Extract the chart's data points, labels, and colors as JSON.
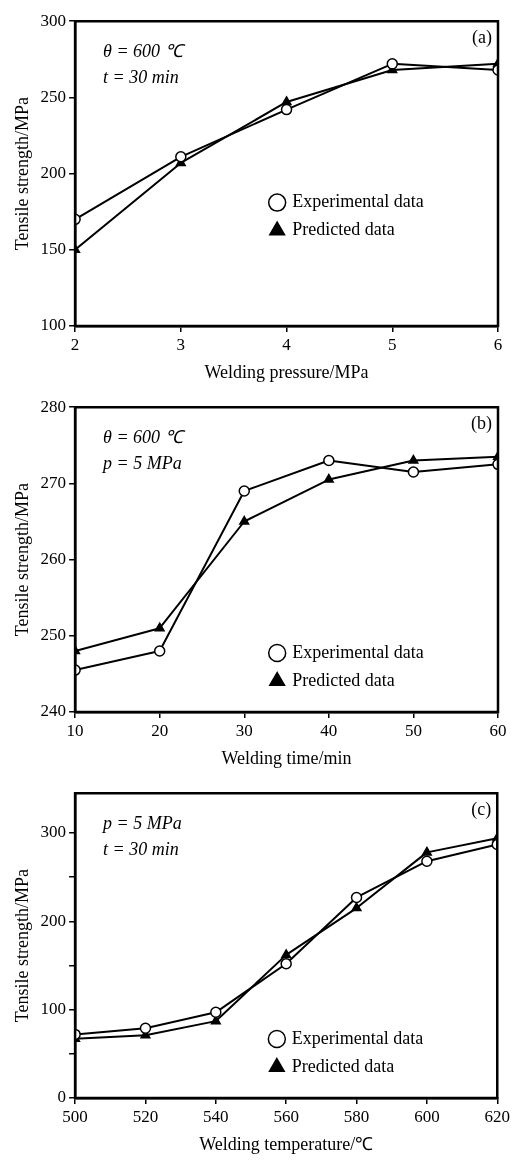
{
  "chart_data": [
    {
      "type": "line",
      "xlabel": "Welding pressure/MPa",
      "ylabel": "Tensile strength/MPa",
      "x": [
        2,
        3,
        4,
        5,
        6
      ],
      "xlim": [
        2,
        6
      ],
      "xticks": [
        2,
        3,
        4,
        5,
        6
      ],
      "ylim": [
        100,
        300
      ],
      "yticks": [
        100,
        150,
        200,
        250,
        300
      ],
      "grid": false,
      "legend": "center right",
      "annotations": [
        "(a)",
        "θ = 600 ℃",
        "t = 30 min"
      ],
      "series": [
        {
          "name": "Experimental data",
          "color": "#000000",
          "marker": "circle",
          "values": [
            170,
            211,
            242,
            272,
            268
          ]
        },
        {
          "name": "Predicted data",
          "color": "#000000",
          "marker": "triangle",
          "values": [
            150,
            207,
            247,
            268,
            272
          ]
        }
      ]
    },
    {
      "type": "line",
      "xlabel": "Welding time/min",
      "ylabel": "Tensile strength/MPa",
      "x": [
        10,
        20,
        30,
        40,
        50,
        60
      ],
      "xlim": [
        10,
        60
      ],
      "xticks": [
        10,
        20,
        30,
        40,
        50,
        60
      ],
      "ylim": [
        240,
        280
      ],
      "yticks": [
        240,
        250,
        260,
        270,
        280
      ],
      "grid": false,
      "legend": "bottom right",
      "annotations": [
        "(b)",
        "θ = 600 ℃",
        "p = 5 MPa"
      ],
      "series": [
        {
          "name": "Experimental data",
          "color": "#000000",
          "marker": "circle",
          "values": [
            245.5,
            248,
            269,
            273,
            271.5,
            272.5
          ]
        },
        {
          "name": "Predicted data",
          "color": "#000000",
          "marker": "triangle",
          "values": [
            248,
            251,
            265,
            270.5,
            273,
            273.5
          ]
        }
      ]
    },
    {
      "type": "line",
      "xlabel": "Welding temperature/℃",
      "ylabel": "Tensile strength/MPa",
      "x": [
        500,
        520,
        540,
        560,
        580,
        600,
        620
      ],
      "xlim": [
        500,
        620
      ],
      "xticks": [
        500,
        520,
        540,
        560,
        580,
        600,
        620
      ],
      "ylim": [
        0,
        345
      ],
      "yticks": [
        0,
        {
          "value": 50,
          "label": null
        },
        100,
        {
          "value": 150,
          "label": null
        },
        200,
        {
          "value": 250,
          "label": null
        },
        300
      ],
      "grid": false,
      "legend": "bottom right",
      "annotations": [
        "(c)",
        "p = 5 MPa",
        "t = 30 min"
      ],
      "series": [
        {
          "name": "Experimental data",
          "color": "#000000",
          "marker": "circle",
          "values": [
            72,
            79,
            97,
            152,
            227,
            268,
            287
          ]
        },
        {
          "name": "Predicted data",
          "color": "#000000",
          "marker": "triangle",
          "values": [
            67,
            71,
            87,
            162,
            215,
            278,
            294
          ]
        }
      ]
    }
  ]
}
